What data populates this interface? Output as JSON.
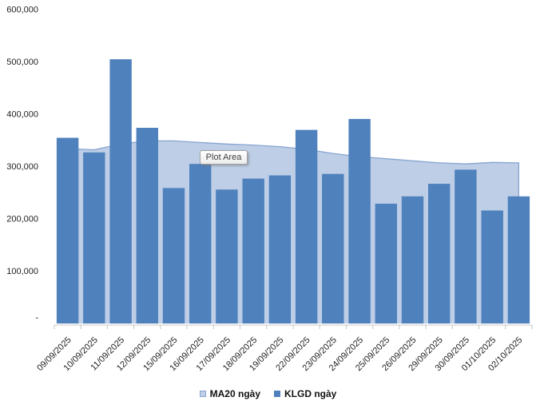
{
  "tooltip": {
    "text": "Plot Area"
  },
  "colors": {
    "bar": "#4F81BD",
    "area_fill": "#BDCEE6",
    "area_line": "#88A4D0",
    "axis": "#C6C6C6",
    "text": "#1F1F1F"
  },
  "chart_data": {
    "type": "bar",
    "subtype": "bar series with area (moving average) behind, Excel-style volume chart",
    "title": "",
    "xlabel": "",
    "ylabel": "",
    "ylim": [
      0,
      600000
    ],
    "grid": false,
    "legend_position": "bottom",
    "y_ticks": [
      {
        "label": "600,000",
        "value": 600000
      },
      {
        "label": "500,000",
        "value": 500000
      },
      {
        "label": "400,000",
        "value": 400000
      },
      {
        "label": "300,000",
        "value": 300000
      },
      {
        "label": "200,000",
        "value": 200000
      },
      {
        "label": "100,000",
        "value": 100000
      },
      {
        "label": "-",
        "value": 0
      }
    ],
    "categories": [
      "09/09/2025",
      "10/09/2025",
      "11/09/2025",
      "12/09/2025",
      "15/09/2025",
      "16/09/2025",
      "17/09/2025",
      "18/09/2025",
      "19/09/2025",
      "22/09/2025",
      "23/09/2025",
      "24/09/2025",
      "25/09/2025",
      "26/09/2025",
      "29/09/2025",
      "30/09/2025",
      "01/10/2025",
      "02/10/2025"
    ],
    "series": [
      {
        "name": "MA20 ngày",
        "type": "area",
        "values": [
          334000,
          332000,
          343000,
          349000,
          349000,
          346000,
          343000,
          341000,
          338000,
          333000,
          325000,
          319000,
          315000,
          311000,
          307000,
          305000,
          308000,
          307000
        ]
      },
      {
        "name": "KLGD ngày",
        "type": "bar",
        "values": [
          355000,
          327000,
          505000,
          374000,
          259000,
          305000,
          256000,
          277000,
          283000,
          370000,
          286000,
          391000,
          229000,
          243000,
          267000,
          294000,
          216000,
          243000
        ]
      }
    ]
  }
}
